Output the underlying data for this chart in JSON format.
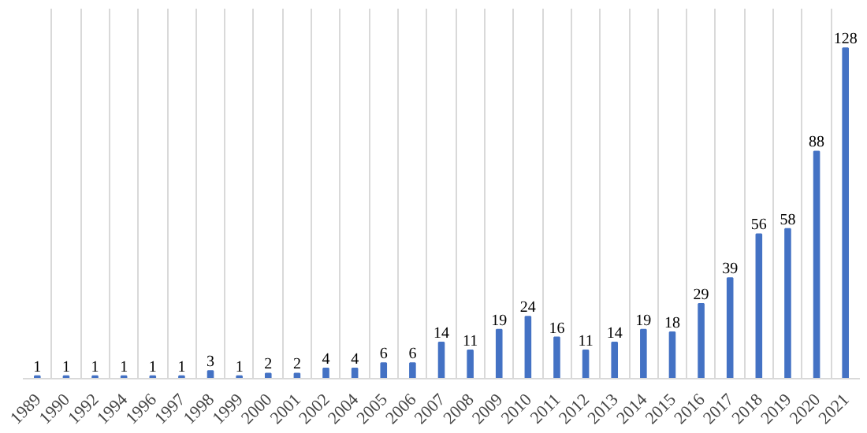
{
  "chart_data": {
    "type": "bar",
    "categories": [
      "1989",
      "1990",
      "1992",
      "1994",
      "1996",
      "1997",
      "1998",
      "1999",
      "2000",
      "2001",
      "2002",
      "2004",
      "2005",
      "2006",
      "2007",
      "2008",
      "2009",
      "2010",
      "2011",
      "2012",
      "2013",
      "2014",
      "2015",
      "2016",
      "2017",
      "2018",
      "2019",
      "2020",
      "2021"
    ],
    "values": [
      1,
      1,
      1,
      1,
      1,
      1,
      3,
      1,
      2,
      2,
      4,
      4,
      6,
      6,
      14,
      11,
      19,
      24,
      16,
      11,
      14,
      19,
      18,
      29,
      39,
      56,
      58,
      88,
      128
    ],
    "color": "#4472c4",
    "data_labels": true,
    "grid": "x"
  }
}
